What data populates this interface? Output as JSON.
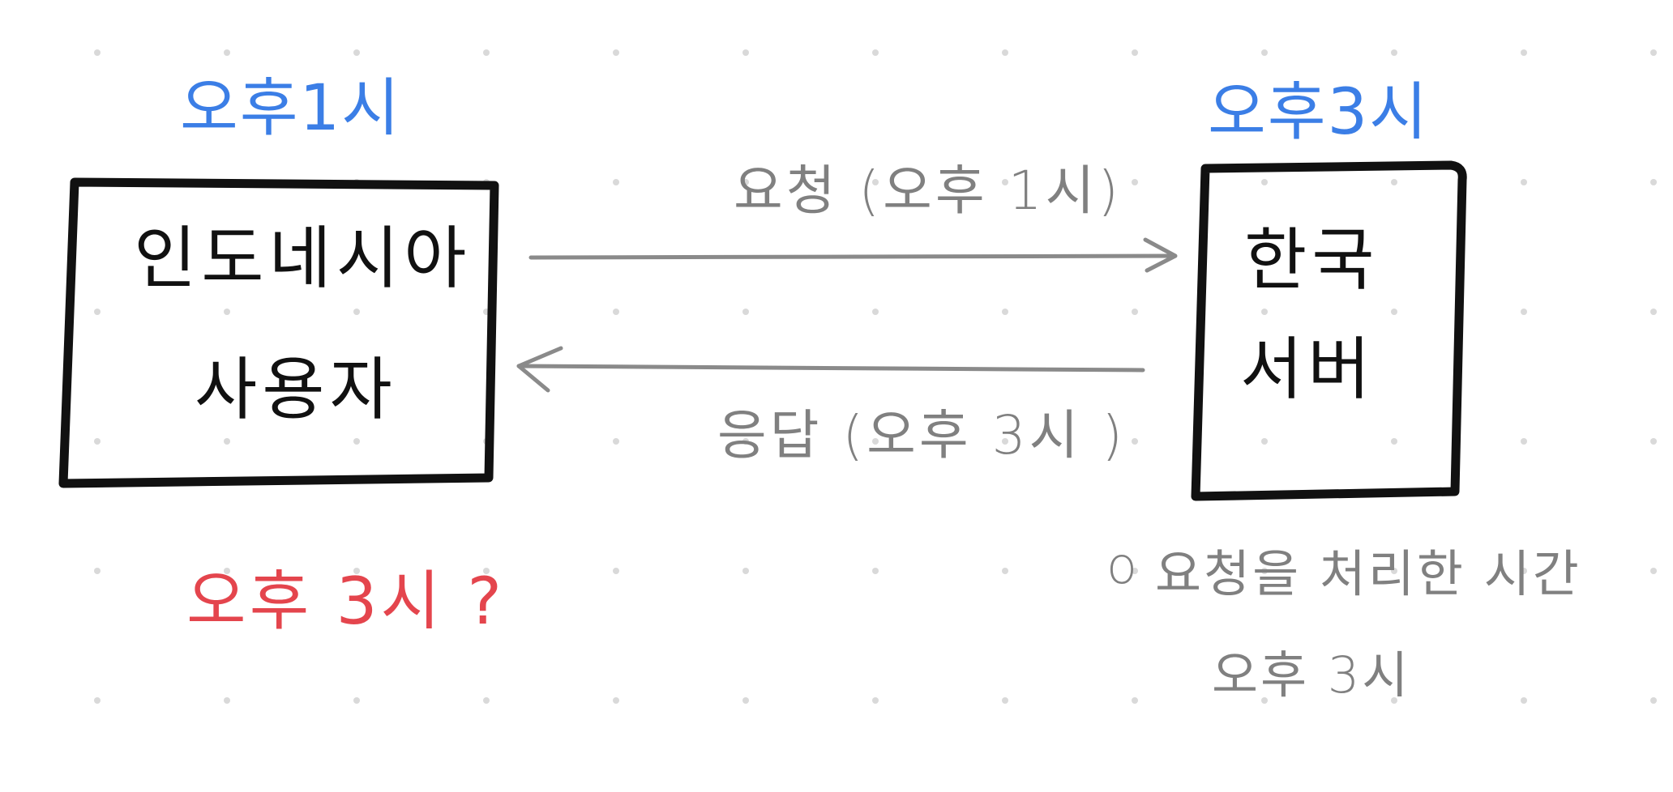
{
  "client": {
    "time_label": "오후1시",
    "box_line1": "인도네시아",
    "box_line2": "사용자",
    "question_label": "오후 3시 ?"
  },
  "server": {
    "time_label": "오후3시",
    "box_line1": "한국",
    "box_line2": "서버"
  },
  "arrows": {
    "request_label": "요청 (오후 1시)",
    "response_label": "응답 (오후 3시 )"
  },
  "note": {
    "bullet": "o",
    "line1": "요청을 처리한 시간",
    "line2": "오후 3시"
  },
  "colors": {
    "blue": "#3b7ee6",
    "red": "#e4454d",
    "black": "#111111",
    "gray": "#808080",
    "dot": "#d9d9d9"
  }
}
